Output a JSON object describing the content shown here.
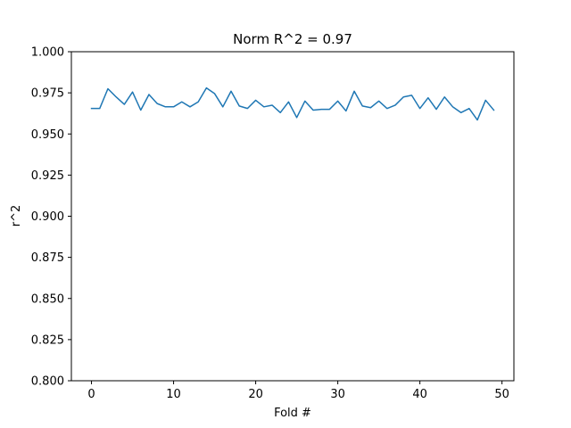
{
  "chart_data": {
    "type": "line",
    "title": "Norm R^2 = 0.97",
    "xlabel": "Fold #",
    "ylabel": "r^2",
    "xlim": [
      -2.45,
      51.45
    ],
    "ylim": [
      0.8,
      1.0
    ],
    "xticks": [
      0,
      10,
      20,
      30,
      40,
      50
    ],
    "yticks": [
      0.8,
      0.825,
      0.85,
      0.875,
      0.9,
      0.925,
      0.95,
      0.975,
      1.0
    ],
    "ytick_labels": [
      "0.800",
      "0.825",
      "0.850",
      "0.875",
      "0.900",
      "0.925",
      "0.950",
      "0.975",
      "1.000"
    ],
    "grid": false,
    "series": [
      {
        "color": "#1f77b4",
        "x": [
          0,
          1,
          2,
          3,
          4,
          5,
          6,
          7,
          8,
          9,
          10,
          11,
          12,
          13,
          14,
          15,
          16,
          17,
          18,
          19,
          20,
          21,
          22,
          23,
          24,
          25,
          26,
          27,
          28,
          29,
          30,
          31,
          32,
          33,
          34,
          35,
          36,
          37,
          38,
          39,
          40,
          41,
          42,
          43,
          44,
          45,
          46,
          47,
          48,
          49
        ],
        "values": [
          0.9655,
          0.9655,
          0.9775,
          0.9725,
          0.968,
          0.9755,
          0.9645,
          0.974,
          0.9685,
          0.9665,
          0.9665,
          0.9695,
          0.9665,
          0.9695,
          0.978,
          0.9745,
          0.9665,
          0.976,
          0.967,
          0.9655,
          0.9705,
          0.9665,
          0.9675,
          0.963,
          0.9695,
          0.96,
          0.97,
          0.9645,
          0.965,
          0.965,
          0.97,
          0.964,
          0.976,
          0.967,
          0.966,
          0.97,
          0.9655,
          0.9675,
          0.9725,
          0.9735,
          0.9655,
          0.972,
          0.965,
          0.9725,
          0.9665,
          0.963,
          0.9655,
          0.9585,
          0.9705,
          0.9645
        ]
      }
    ]
  }
}
